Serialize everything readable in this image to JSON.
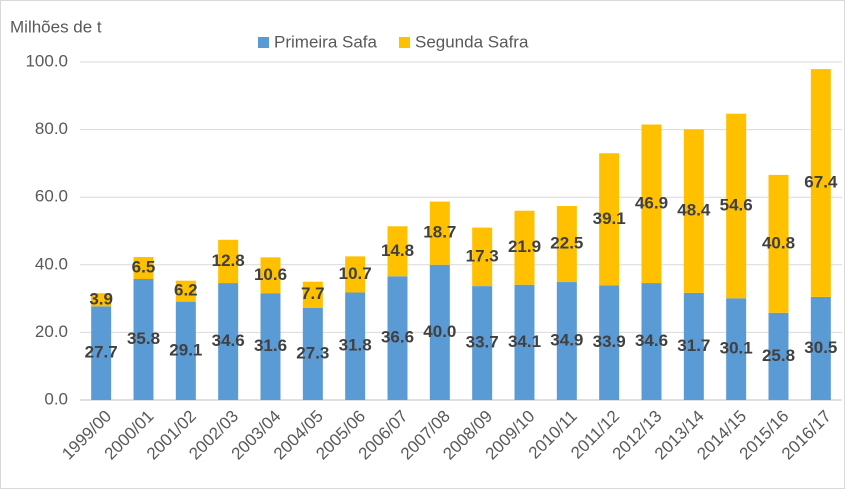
{
  "chart_data": {
    "type": "stacked_bar",
    "y_axis_label": "Milhões de t",
    "categories": [
      "1999/00",
      "2000/01",
      "2001/02",
      "2002/03",
      "2003/04",
      "2004/05",
      "2005/06",
      "2006/07",
      "2007/08",
      "2008/09",
      "2009/10",
      "2010/11",
      "2011/12",
      "2012/13",
      "2013/14",
      "2014/15",
      "2015/16",
      "2016/17"
    ],
    "series": [
      {
        "name": "Primeira Safa",
        "color": "#5b9bd5",
        "values": [
          27.7,
          35.8,
          29.1,
          34.6,
          31.6,
          27.3,
          31.8,
          36.6,
          40.0,
          33.7,
          34.1,
          34.9,
          33.9,
          34.6,
          31.7,
          30.1,
          25.8,
          30.5
        ],
        "value_labels": [
          "27.7",
          "35.8",
          "29.1",
          "34.6",
          "31.6",
          "27.3",
          "31.8",
          "36.6",
          "40.0",
          "33.7",
          "34.1",
          "34.9",
          "33.9",
          "34.6",
          "31.7",
          "30.1",
          "25.8",
          "30.5"
        ]
      },
      {
        "name": "Segunda Safra",
        "color": "#ffc000",
        "values": [
          3.9,
          6.5,
          6.2,
          12.8,
          10.6,
          7.7,
          10.7,
          14.8,
          18.7,
          17.3,
          21.9,
          22.5,
          39.1,
          46.9,
          48.4,
          54.6,
          40.8,
          67.4
        ],
        "value_labels": [
          "3.9",
          "6.5",
          "6.2",
          "12.8",
          "10.6",
          "7.7",
          "10.7",
          "14.8",
          "18.7",
          "17.3",
          "21.9",
          "22.5",
          "39.1",
          "46.9",
          "48.4",
          "54.6",
          "40.8",
          "67.4"
        ]
      }
    ],
    "ylim": [
      0,
      100
    ],
    "yticks": [
      {
        "value": 0,
        "label": "0.0"
      },
      {
        "value": 20,
        "label": "20.0"
      },
      {
        "value": 40,
        "label": "40.0"
      },
      {
        "value": 60,
        "label": "60.0"
      },
      {
        "value": 80,
        "label": "80.0"
      },
      {
        "value": 100,
        "label": "100.0"
      }
    ],
    "grid": true,
    "legend": "top"
  }
}
